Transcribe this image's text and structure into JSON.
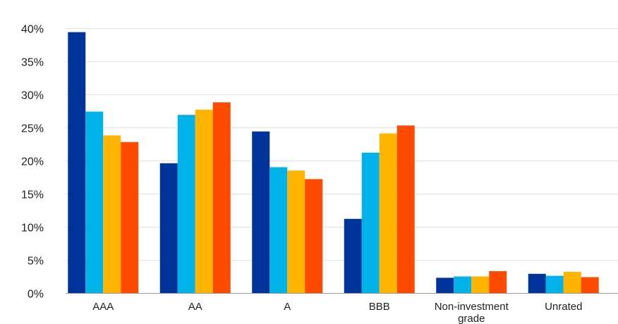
{
  "chart_data": {
    "type": "bar",
    "title": "",
    "xlabel": "",
    "ylabel": "",
    "ylim": [
      0,
      40
    ],
    "yticks": [
      0,
      5,
      10,
      15,
      20,
      25,
      30,
      35,
      40
    ],
    "ytick_labels": [
      "0%",
      "5%",
      "10%",
      "15%",
      "20%",
      "25%",
      "30%",
      "35%",
      "40%"
    ],
    "grid": true,
    "legend": "none",
    "categories": [
      [
        "AAA"
      ],
      [
        "AA"
      ],
      [
        "A"
      ],
      [
        "BBB"
      ],
      [
        "Non-investment",
        "grade"
      ],
      [
        "Unrated"
      ]
    ],
    "series": [
      {
        "color": "#003399",
        "values": [
          39.4,
          19.6,
          24.4,
          11.2,
          2.3,
          2.9
        ]
      },
      {
        "color": "#00b1ea",
        "values": [
          27.4,
          26.9,
          19.0,
          21.2,
          2.5,
          2.6
        ]
      },
      {
        "color": "#ffb400",
        "values": [
          23.8,
          27.7,
          18.5,
          24.1,
          2.5,
          3.2
        ]
      },
      {
        "color": "#ff4b00",
        "values": [
          22.8,
          28.8,
          17.2,
          25.3,
          3.3,
          2.4
        ]
      }
    ]
  }
}
